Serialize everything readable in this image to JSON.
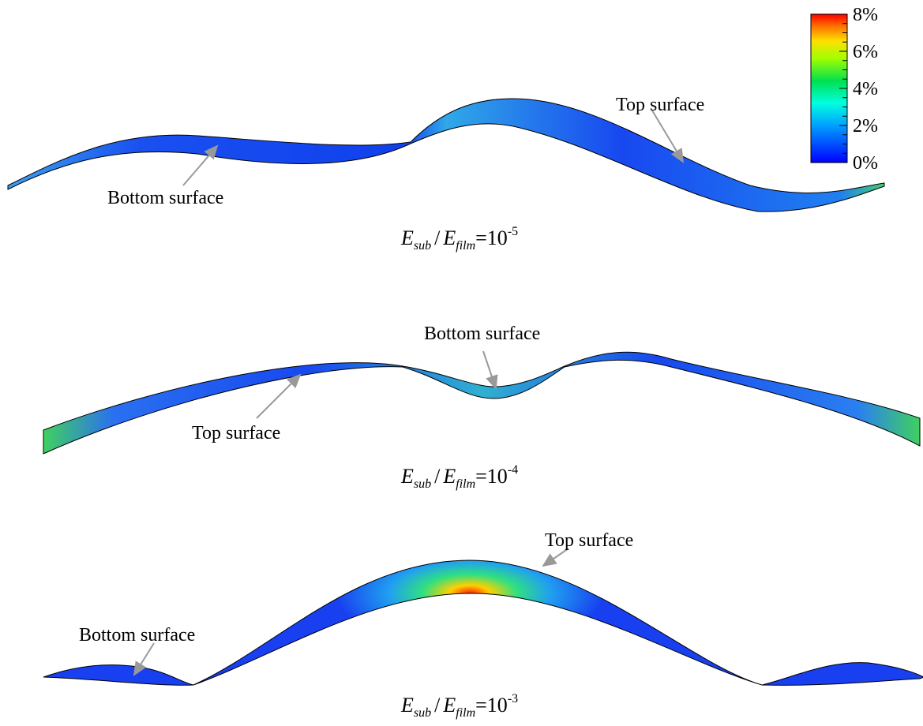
{
  "colorbar": {
    "labels": [
      "8%",
      "6%",
      "4%",
      "2%",
      "0%"
    ]
  },
  "panels": [
    {
      "annotations": [
        "Bottom surface",
        "Top surface"
      ],
      "caption": {
        "e1": "E",
        "sub1": "sub",
        "slash": "/",
        "e2": "E",
        "sub2": "film",
        "base": "=10",
        "exp": "-5"
      }
    },
    {
      "annotations": [
        "Bottom surface",
        "Top surface"
      ],
      "caption": {
        "e1": "E",
        "sub1": "sub",
        "slash": "/",
        "e2": "E",
        "sub2": "film",
        "base": "=10",
        "exp": "-4"
      }
    },
    {
      "annotations": [
        "Top surface",
        "Bottom surface"
      ],
      "caption": {
        "e1": "E",
        "sub1": "sub",
        "slash": "/",
        "e2": "E",
        "sub2": "film",
        "base": "=10",
        "exp": "-3"
      }
    }
  ]
}
